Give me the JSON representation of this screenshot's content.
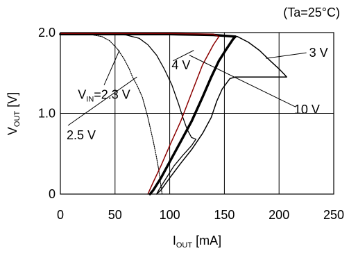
{
  "chart_data": {
    "type": "line",
    "condition": "(Ta=25°C)",
    "xlabel": {
      "main": "I",
      "sub": "OUT",
      "unit": " [mA]"
    },
    "ylabel": {
      "main": "V",
      "sub": "OUT",
      "unit": " [V]"
    },
    "xlim": [
      0,
      250
    ],
    "ylim": [
      0,
      2.0
    ],
    "xticks": [
      "0",
      "50",
      "100",
      "150",
      "200",
      "250"
    ],
    "yticks": [
      "0",
      "1.0",
      "2.0"
    ],
    "grid": true,
    "series": [
      {
        "name": "VIN=2.3 V",
        "color": "#000000",
        "width": 1.2,
        "dashed": true,
        "points": [
          [
            0,
            1.98
          ],
          [
            20,
            1.98
          ],
          [
            30,
            1.97
          ],
          [
            38,
            1.95
          ],
          [
            45,
            1.9
          ],
          [
            52,
            1.8
          ],
          [
            58,
            1.68
          ],
          [
            63,
            1.55
          ],
          [
            66,
            1.45
          ],
          [
            70,
            1.35
          ],
          [
            75,
            1.2
          ],
          [
            80,
            0.95
          ],
          [
            85,
            0.65
          ],
          [
            88,
            0.45
          ],
          [
            90,
            0.3
          ],
          [
            92,
            0.1
          ],
          [
            93,
            0.0
          ]
        ]
      },
      {
        "name": "2.5 V",
        "color": "#000000",
        "width": 1.3,
        "points": [
          [
            0,
            1.98
          ],
          [
            40,
            1.98
          ],
          [
            60,
            1.97
          ],
          [
            72,
            1.93
          ],
          [
            80,
            1.85
          ],
          [
            88,
            1.72
          ],
          [
            95,
            1.55
          ],
          [
            102,
            1.35
          ],
          [
            108,
            1.12
          ],
          [
            112,
            0.95
          ],
          [
            116,
            0.8
          ],
          [
            120,
            0.7
          ],
          [
            124,
            0.68
          ],
          [
            120,
            0.6
          ],
          [
            112,
            0.48
          ],
          [
            104,
            0.35
          ],
          [
            96,
            0.18
          ],
          [
            90,
            0.05
          ],
          [
            88,
            0.0
          ]
        ]
      },
      {
        "name": "3 V",
        "color": "#000000",
        "width": 1.5,
        "points": [
          [
            0,
            1.98
          ],
          [
            100,
            1.98
          ],
          [
            140,
            1.97
          ],
          [
            162,
            1.95
          ],
          [
            172,
            1.88
          ],
          [
            182,
            1.78
          ],
          [
            192,
            1.65
          ],
          [
            200,
            1.55
          ],
          [
            205,
            1.48
          ],
          [
            207,
            1.45
          ],
          [
            200,
            1.45
          ],
          [
            160,
            1.45
          ],
          [
            155,
            1.43
          ],
          [
            148,
            1.3
          ],
          [
            143,
            1.15
          ],
          [
            138,
            0.95
          ],
          [
            130,
            0.75
          ],
          [
            120,
            0.55
          ],
          [
            110,
            0.38
          ],
          [
            100,
            0.2
          ],
          [
            92,
            0.05
          ],
          [
            88,
            0.0
          ]
        ]
      },
      {
        "name": "4 V",
        "color": "#000000",
        "width": 3.5,
        "points": [
          [
            0,
            1.98
          ],
          [
            100,
            1.98
          ],
          [
            140,
            1.97
          ],
          [
            160,
            1.95
          ],
          [
            158,
            1.92
          ],
          [
            152,
            1.8
          ],
          [
            145,
            1.65
          ],
          [
            138,
            1.45
          ],
          [
            130,
            1.2
          ],
          [
            120,
            0.9
          ],
          [
            110,
            0.65
          ],
          [
            100,
            0.4
          ],
          [
            92,
            0.2
          ],
          [
            85,
            0.05
          ],
          [
            82,
            0.0
          ]
        ]
      },
      {
        "name": "10 V",
        "color": "#8b0000",
        "width": 1.5,
        "points": [
          [
            0,
            1.99
          ],
          [
            100,
            1.99
          ],
          [
            140,
            1.98
          ],
          [
            145,
            1.95
          ],
          [
            140,
            1.85
          ],
          [
            130,
            1.6
          ],
          [
            120,
            1.25
          ],
          [
            110,
            0.9
          ],
          [
            100,
            0.6
          ],
          [
            92,
            0.35
          ],
          [
            85,
            0.15
          ],
          [
            80,
            0.0
          ]
        ]
      }
    ],
    "labels": [
      {
        "series": "VIN=2.3 V",
        "main": "V",
        "sub": "IN",
        "rest": "=2.3 V",
        "anchor": [
          40,
          1.35
        ],
        "point": [
          54,
          1.78
        ]
      },
      {
        "series": "2.5 V",
        "text": "2.5 V",
        "anchor": [
          7,
          0.85
        ],
        "point": [
          70,
          1.45
        ]
      },
      {
        "series": "3 V",
        "text": "3 V",
        "anchor": [
          225,
          1.75
        ],
        "point": [
          188,
          1.68
        ]
      },
      {
        "series": "4 V",
        "text": "4 V",
        "anchor": [
          103,
          1.65
        ],
        "point": [
          122,
          1.78
        ]
      },
      {
        "series": "10 V",
        "text": "10 V",
        "anchor": [
          215,
          1.08
        ],
        "point": [
          118,
          1.72
        ]
      }
    ]
  }
}
